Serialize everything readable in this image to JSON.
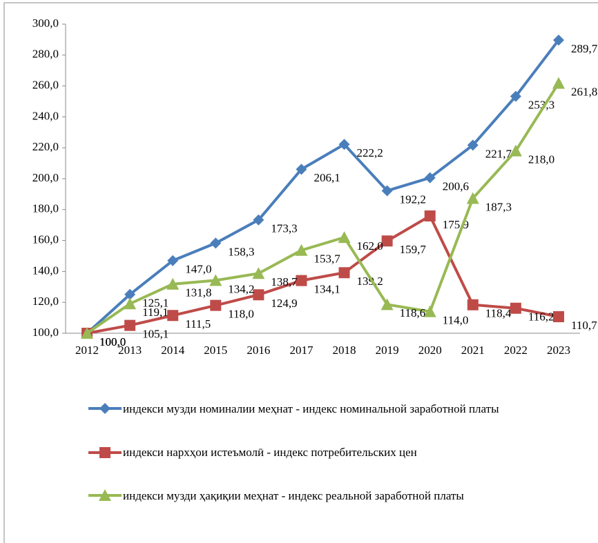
{
  "chart_data": {
    "type": "line",
    "categories": [
      "2012",
      "2013",
      "2014",
      "2015",
      "2016",
      "2017",
      "2018",
      "2019",
      "2020",
      "2021",
      "2022",
      "2023"
    ],
    "ylim": [
      100,
      300
    ],
    "yticks": [
      {
        "value": 100,
        "label": "100,0"
      },
      {
        "value": 120,
        "label": "120,0"
      },
      {
        "value": 140,
        "label": "140,0"
      },
      {
        "value": 160,
        "label": "160,0"
      },
      {
        "value": 180,
        "label": "180,0"
      },
      {
        "value": 200,
        "label": "200,0"
      },
      {
        "value": 220,
        "label": "220,0"
      },
      {
        "value": 240,
        "label": "240,0"
      },
      {
        "value": 260,
        "label": "260,0"
      },
      {
        "value": 280,
        "label": "280,0"
      },
      {
        "value": 300,
        "label": "300,0"
      }
    ],
    "legend": "bottom",
    "series": [
      {
        "name": "индекси музди номиналии меҳнат - индекс номинальной заработной платы",
        "color": "#4a7ebb",
        "marker": "diamond",
        "values": [
          100,
          125.1,
          147.0,
          158.3,
          173.3,
          206.1,
          222.2,
          192.2,
          200.6,
          221.7,
          253.3,
          289.7
        ],
        "value_labels": [
          "100,0",
          "125,1",
          "147,0",
          "158,3",
          "173,3",
          "206,1",
          "222,2",
          "192,2",
          "200,6",
          "221,7",
          "253,3",
          "289,7"
        ]
      },
      {
        "name": "индекси нархҳои истеъмолӣ - индекс потребительских цен",
        "color": "#be4b48",
        "marker": "square",
        "values": [
          100,
          105.1,
          111.5,
          118.0,
          124.9,
          134.1,
          139.2,
          159.7,
          175.9,
          118.4,
          116.2,
          110.7
        ],
        "value_labels": [
          "100,0",
          "105,1",
          "111,5",
          "118,0",
          "124,9",
          "134,1",
          "139,2",
          "159,7",
          "175,9",
          "118,4",
          "116,2",
          "110,7"
        ]
      },
      {
        "name": "индекси музди ҳақиқии меҳнат - индекс реальной заработной платы",
        "color": "#98b954",
        "marker": "triangle",
        "values": [
          100,
          119.1,
          131.8,
          134.2,
          138.7,
          153.7,
          162.0,
          118.6,
          114.0,
          187.3,
          218.0,
          261.8
        ],
        "value_labels": [
          "100,0",
          "119,1",
          "131,8",
          "134,2",
          "138,7",
          "153,7",
          "162,0",
          "118,6",
          "114,0",
          "187,3",
          "218,0",
          "261,8"
        ]
      }
    ]
  }
}
